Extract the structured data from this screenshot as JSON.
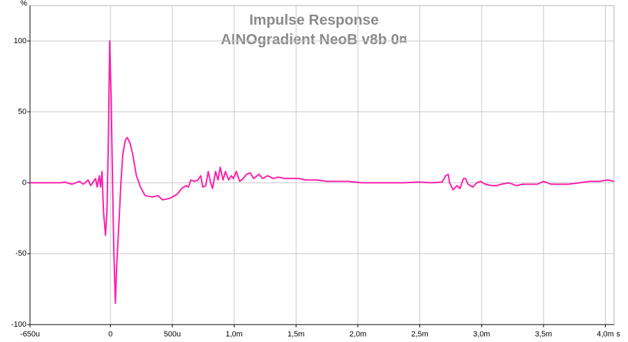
{
  "chart_data": {
    "type": "line",
    "title": "Impulse Response",
    "subtitle": "AINOgradient NeoB v8b 0¤",
    "x_label": "s",
    "y_label": "%",
    "xlim": [
      -0.65,
      4.07
    ],
    "ylim": [
      -100,
      125
    ],
    "xticks": [
      {
        "value": -0.65,
        "label": "-650u"
      },
      0,
      {
        "value": 0.5,
        "label": "500u"
      },
      {
        "value": 1,
        "label": "1,0m"
      },
      {
        "value": 1.5,
        "label": "1,5m"
      },
      {
        "value": 2,
        "label": "2,0m"
      },
      {
        "value": 2.5,
        "label": "2,5m"
      },
      {
        "value": 3,
        "label": "3,0m"
      },
      {
        "value": 3.5,
        "label": "3,5m"
      },
      {
        "value": 4,
        "label": "4,0m"
      }
    ],
    "yticks": [
      -100,
      -50,
      0,
      50,
      100
    ],
    "grid": true,
    "x": [
      -0.65,
      -0.4,
      -0.37,
      -0.31,
      -0.25,
      -0.22,
      -0.18,
      -0.16,
      -0.12,
      -0.107,
      -0.09,
      -0.08,
      -0.068,
      -0.056,
      -0.04,
      -0.028,
      -0.017,
      -0.006,
      0.006,
      0.017,
      0.028,
      0.04,
      0.05,
      0.068,
      0.085,
      0.1,
      0.12,
      0.136,
      0.158,
      0.18,
      0.21,
      0.243,
      0.28,
      0.34,
      0.384,
      0.42,
      0.48,
      0.54,
      0.576,
      0.61,
      0.63,
      0.65,
      0.68,
      0.706,
      0.73,
      0.746,
      0.77,
      0.79,
      0.81,
      0.825,
      0.85,
      0.87,
      0.887,
      0.91,
      0.93,
      0.955,
      0.977,
      0.994,
      1.017,
      1.045,
      1.073,
      1.1,
      1.13,
      1.158,
      1.2,
      1.23,
      1.27,
      1.316,
      1.356,
      1.41,
      1.47,
      1.525,
      1.58,
      1.667,
      1.75,
      1.84,
      1.92,
      2.03,
      2.15,
      2.26,
      2.37,
      2.49,
      2.6,
      2.68,
      2.71,
      2.73,
      2.74,
      2.77,
      2.8,
      2.825,
      2.853,
      2.87,
      2.89,
      2.93,
      2.96,
      2.99,
      3.03,
      3.08,
      3.12,
      3.16,
      3.22,
      3.28,
      3.33,
      3.39,
      3.45,
      3.5,
      3.56,
      3.62,
      3.7,
      3.79,
      3.87,
      3.95,
      4.02,
      4.07
    ],
    "series": [
      {
        "name": "AINOgradient NeoB v8b 0¤",
        "color": "#ff1cac",
        "values": [
          0,
          0,
          0.5,
          -1,
          1,
          -1,
          2,
          -2,
          3,
          -3,
          5,
          -3,
          8,
          -20,
          -37,
          -20,
          30,
          100,
          60,
          0,
          -50,
          -85,
          -60,
          -30,
          0,
          20,
          30,
          32,
          28,
          20,
          5,
          -3,
          -9,
          -10,
          -9,
          -12,
          -11,
          -8,
          -4,
          -2,
          -3,
          2,
          1,
          2,
          5,
          -3,
          -2,
          8,
          0,
          -4,
          8,
          2,
          11,
          2,
          8,
          2,
          5,
          3,
          8,
          1,
          3,
          6,
          7,
          3,
          6,
          3,
          5,
          3,
          4,
          3,
          3,
          3,
          2,
          2,
          1,
          1,
          1,
          0,
          0,
          0,
          0,
          0.5,
          0,
          0.5,
          5,
          6,
          0,
          -5,
          -2,
          -4,
          3,
          3,
          -1,
          -3,
          0,
          1,
          -1,
          -2,
          -2,
          -1,
          0,
          -2,
          -1,
          -1,
          -1,
          1,
          -1,
          -1,
          -1,
          0,
          1,
          1,
          2,
          1
        ]
      }
    ]
  }
}
